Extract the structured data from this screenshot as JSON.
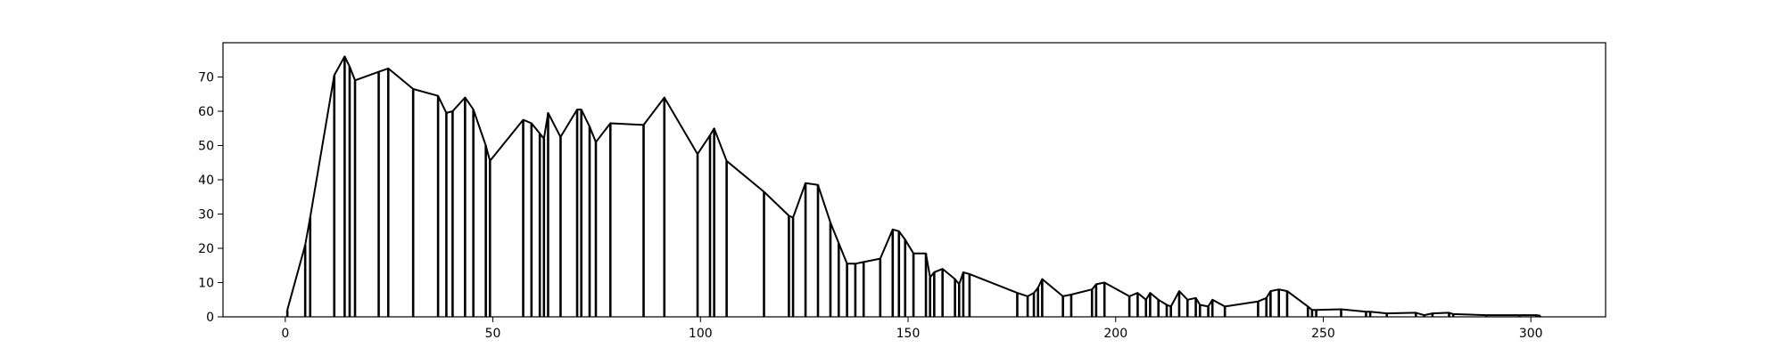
{
  "chart_data": {
    "type": "line",
    "title": "",
    "xlabel": "",
    "ylabel": "",
    "xlim": [
      -15,
      318
    ],
    "ylim": [
      0,
      80
    ],
    "x_ticks": [
      0,
      50,
      100,
      150,
      200,
      250,
      300
    ],
    "y_ticks": [
      0,
      10,
      20,
      30,
      40,
      50,
      60,
      70
    ],
    "grid": false,
    "legend": "none",
    "series_color": "#000000",
    "stems": true,
    "points": [
      [
        0.5,
        2
      ],
      [
        4.8,
        21
      ],
      [
        6,
        29
      ],
      [
        11.8,
        70.5
      ],
      [
        14.3,
        76
      ],
      [
        15.5,
        73
      ],
      [
        16.8,
        69
      ],
      [
        22.5,
        71.5
      ],
      [
        24.8,
        72.5
      ],
      [
        30.8,
        66.5
      ],
      [
        36.8,
        64.5
      ],
      [
        38.8,
        59.5
      ],
      [
        40.3,
        60
      ],
      [
        43.3,
        64
      ],
      [
        45.3,
        60.5
      ],
      [
        48.3,
        50
      ],
      [
        49.3,
        45.5
      ],
      [
        57.3,
        57.5
      ],
      [
        59.3,
        56.5
      ],
      [
        61.3,
        53.5
      ],
      [
        62.3,
        52
      ],
      [
        63.3,
        59.5
      ],
      [
        66.3,
        52.5
      ],
      [
        70.3,
        60.5
      ],
      [
        71.3,
        60.5
      ],
      [
        73.3,
        55.5
      ],
      [
        74.8,
        51
      ],
      [
        78.3,
        56.5
      ],
      [
        86.3,
        56
      ],
      [
        91.3,
        64
      ],
      [
        99.3,
        47.5
      ],
      [
        102.3,
        53
      ],
      [
        103.3,
        55
      ],
      [
        106.3,
        45.5
      ],
      [
        115.3,
        36.5
      ],
      [
        121.3,
        29.5
      ],
      [
        122.3,
        29
      ],
      [
        125.3,
        39
      ],
      [
        128.3,
        38.5
      ],
      [
        131.3,
        27.5
      ],
      [
        133.3,
        21.5
      ],
      [
        135.3,
        15.5
      ],
      [
        137.3,
        15.5
      ],
      [
        139.3,
        16
      ],
      [
        143.3,
        17
      ],
      [
        146.3,
        25.5
      ],
      [
        147.8,
        25
      ],
      [
        149.3,
        22.5
      ],
      [
        151.3,
        18.5
      ],
      [
        154.3,
        18.5
      ],
      [
        155.3,
        11.5
      ],
      [
        156.3,
        13
      ],
      [
        158.3,
        14
      ],
      [
        161.3,
        11
      ],
      [
        162.3,
        9.5
      ],
      [
        163.3,
        13
      ],
      [
        164.8,
        12.5
      ],
      [
        176.3,
        7
      ],
      [
        178.8,
        6
      ],
      [
        180.3,
        7
      ],
      [
        181.3,
        8.5
      ],
      [
        182.3,
        11
      ],
      [
        187.3,
        6
      ],
      [
        189.3,
        6.5
      ],
      [
        194.3,
        8
      ],
      [
        195.3,
        9.5
      ],
      [
        197.3,
        10
      ],
      [
        203.3,
        6
      ],
      [
        205.3,
        7
      ],
      [
        207.3,
        5
      ],
      [
        208.3,
        7
      ],
      [
        210.3,
        5
      ],
      [
        212.3,
        3.5
      ],
      [
        213.3,
        3
      ],
      [
        215.3,
        7.5
      ],
      [
        217.3,
        5
      ],
      [
        219.3,
        5.5
      ],
      [
        220.3,
        3.5
      ],
      [
        222.3,
        3
      ],
      [
        223.3,
        5
      ],
      [
        226.3,
        3
      ],
      [
        234.3,
        4.5
      ],
      [
        236.3,
        5.5
      ],
      [
        237.3,
        7.5
      ],
      [
        239.3,
        8
      ],
      [
        241.3,
        7.5
      ],
      [
        246.3,
        3
      ],
      [
        247.3,
        2
      ],
      [
        248.3,
        2
      ],
      [
        254.3,
        2.2
      ],
      [
        260.3,
        1.5
      ],
      [
        261.3,
        1.5
      ],
      [
        265.3,
        1
      ],
      [
        272.3,
        1.2
      ],
      [
        274.3,
        0.5
      ],
      [
        276.3,
        1
      ],
      [
        280.3,
        1.2
      ],
      [
        281.3,
        0.8
      ],
      [
        289.3,
        0.5
      ],
      [
        297.3,
        0.5
      ],
      [
        301.3,
        0.5
      ],
      [
        302.3,
        0.3
      ]
    ]
  }
}
